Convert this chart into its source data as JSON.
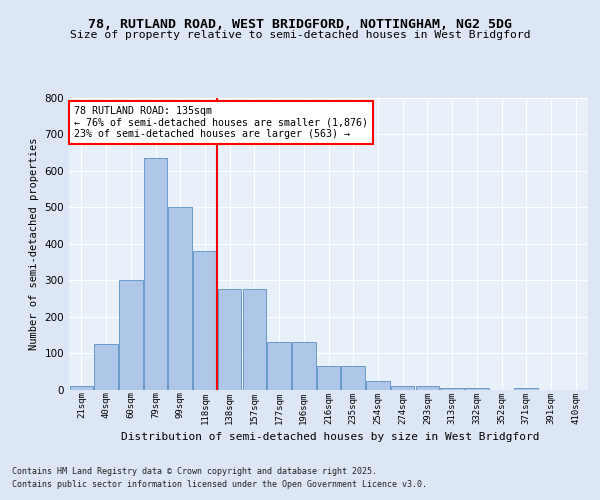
{
  "title": "78, RUTLAND ROAD, WEST BRIDGFORD, NOTTINGHAM, NG2 5DG",
  "subtitle": "Size of property relative to semi-detached houses in West Bridgford",
  "xlabel": "Distribution of semi-detached houses by size in West Bridgford",
  "ylabel": "Number of semi-detached properties",
  "bins": [
    "21sqm",
    "40sqm",
    "60sqm",
    "79sqm",
    "99sqm",
    "118sqm",
    "138sqm",
    "157sqm",
    "177sqm",
    "196sqm",
    "216sqm",
    "235sqm",
    "254sqm",
    "274sqm",
    "293sqm",
    "313sqm",
    "332sqm",
    "352sqm",
    "371sqm",
    "391sqm",
    "410sqm"
  ],
  "values": [
    10,
    125,
    300,
    635,
    500,
    380,
    275,
    275,
    130,
    130,
    65,
    65,
    25,
    10,
    10,
    5,
    5,
    0,
    5,
    0,
    0
  ],
  "bar_color": "#aec6e8",
  "bar_edge_color": "#5a8fc4",
  "vline_idx": 6,
  "vline_color": "red",
  "annotation_text": "78 RUTLAND ROAD: 135sqm\n← 76% of semi-detached houses are smaller (1,876)\n23% of semi-detached houses are larger (563) →",
  "annotation_box_color": "white",
  "annotation_box_edge": "red",
  "ylim": [
    0,
    800
  ],
  "yticks": [
    0,
    100,
    200,
    300,
    400,
    500,
    600,
    700,
    800
  ],
  "footer1": "Contains HM Land Registry data © Crown copyright and database right 2025.",
  "footer2": "Contains public sector information licensed under the Open Government Licence v3.0.",
  "bg_color": "#dce6f5",
  "plot_bg_color": "#e8f0fa"
}
